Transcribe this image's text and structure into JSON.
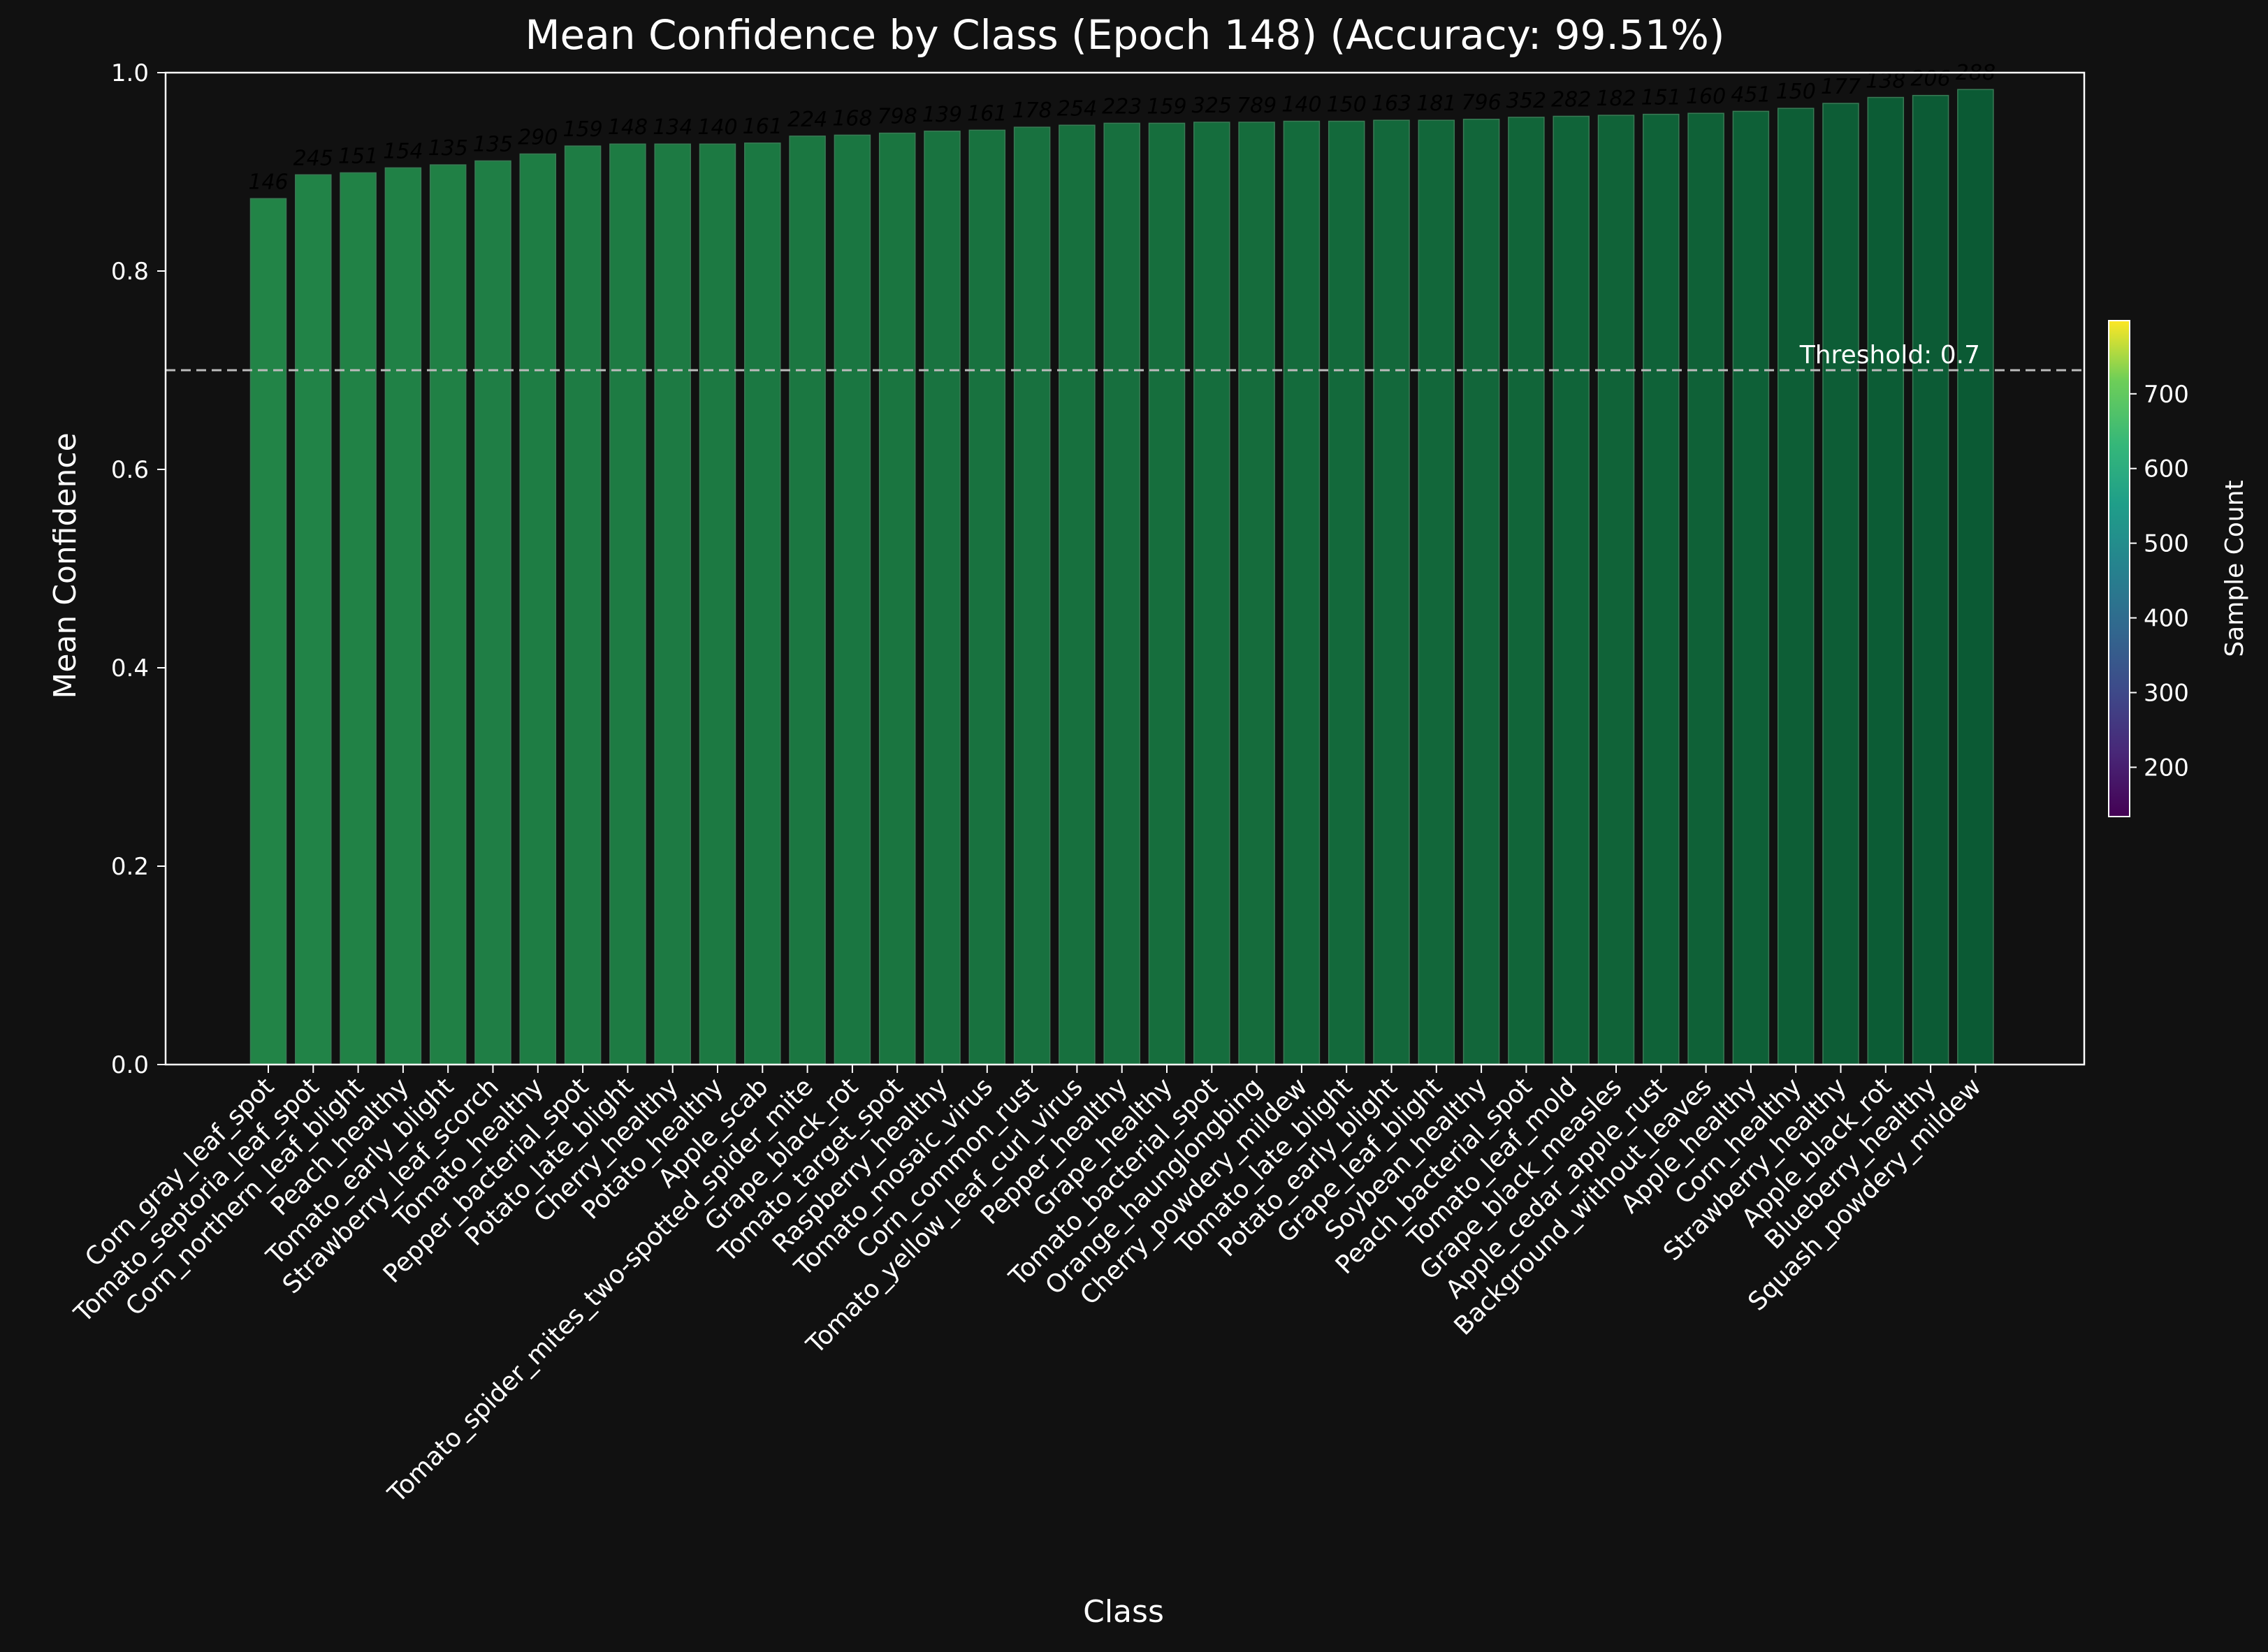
{
  "chart_data": {
    "type": "bar",
    "title": "Mean Confidence by Class (Epoch 148) (Accuracy: 99.51%)",
    "xlabel": "Class",
    "ylabel": "Mean Confidence",
    "ylim": [
      0,
      1.0
    ],
    "yticks": [
      "0.0",
      "0.2",
      "0.4",
      "0.6",
      "0.8",
      "1.0"
    ],
    "grid": false,
    "threshold": {
      "value": 0.7,
      "label": "Threshold: 0.7"
    },
    "categories": [
      "Corn_gray_leaf_spot",
      "Tomato_septoria_leaf_spot",
      "Corn_northern_leaf_blight",
      "Peach_healthy",
      "Tomato_early_blight",
      "Strawberry_leaf_scorch",
      "Tomato_healthy",
      "Pepper_bacterial_spot",
      "Potato_late_blight",
      "Cherry_healthy",
      "Potato_healthy",
      "Apple_scab",
      "Tomato_spider_mites_two-spotted_spider_mite",
      "Grape_black_rot",
      "Tomato_target_spot",
      "Raspberry_healthy",
      "Tomato_mosaic_virus",
      "Corn_common_rust",
      "Tomato_yellow_leaf_curl_virus",
      "Pepper_healthy",
      "Grape_healthy",
      "Tomato_bacterial_spot",
      "Orange_haunglongbing",
      "Cherry_powdery_mildew",
      "Tomato_late_blight",
      "Potato_early_blight",
      "Grape_leaf_blight",
      "Soybean_healthy",
      "Peach_bacterial_spot",
      "Tomato_leaf_mold",
      "Grape_black_measles",
      "Apple_cedar_apple_rust",
      "Background_without_leaves",
      "Apple_healthy",
      "Corn_healthy",
      "Strawberry_healthy",
      "Apple_black_rot",
      "Blueberry_healthy",
      "Squash_powdery_mildew"
    ],
    "values": [
      0.873,
      0.897,
      0.899,
      0.904,
      0.907,
      0.911,
      0.918,
      0.926,
      0.928,
      0.928,
      0.928,
      0.929,
      0.936,
      0.937,
      0.939,
      0.941,
      0.942,
      0.945,
      0.947,
      0.949,
      0.949,
      0.95,
      0.95,
      0.951,
      0.951,
      0.952,
      0.952,
      0.953,
      0.955,
      0.956,
      0.957,
      0.958,
      0.959,
      0.961,
      0.964,
      0.969,
      0.975,
      0.977,
      0.983
    ],
    "sample_counts": [
      "146",
      "245",
      "151",
      "154",
      "135",
      "135",
      "290",
      "159",
      "148",
      "134",
      "140",
      "161",
      "224",
      "168",
      "798",
      "139",
      "161",
      "178",
      "254",
      "223",
      "159",
      "325",
      "789",
      "140",
      "150",
      "163",
      "181",
      "796",
      "352",
      "282",
      "182",
      "151",
      "160",
      "451",
      "150",
      "177",
      "138",
      "206",
      "288"
    ],
    "colorbar": {
      "label": "Sample Count",
      "ticks": [
        "200",
        "300",
        "400",
        "500",
        "600",
        "700"
      ],
      "range": [
        134,
        798
      ],
      "colormap": "viridis"
    },
    "colors": {
      "background": "#111111",
      "text": "#ffffff",
      "bar_light": "#228447",
      "bar_dark": "#0b5a34",
      "threshold_line": "#bbbbbb"
    }
  }
}
